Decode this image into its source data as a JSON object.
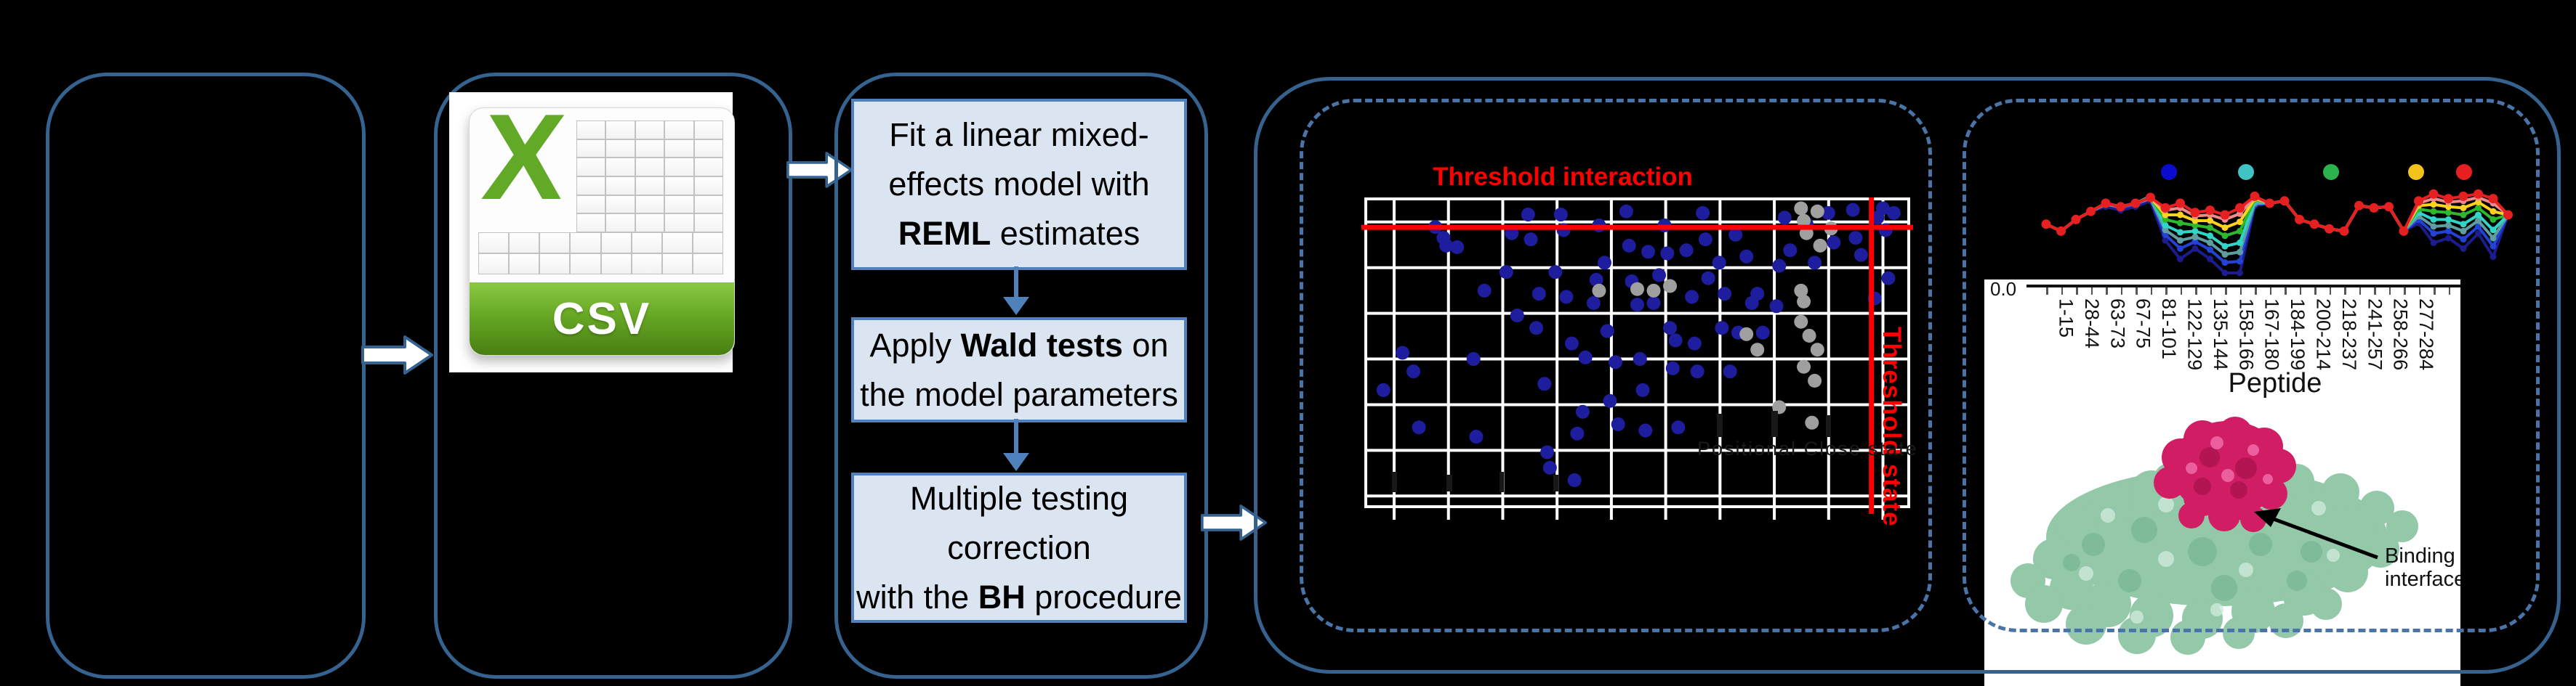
{
  "figure": {
    "flow": {
      "boxes": [
        {
          "lines": [
            [
              {
                "t": "Fit a linear mixed-"
              }
            ],
            [
              {
                "t": "effects model with"
              }
            ],
            [
              {
                "t": "REML",
                "b": 1
              },
              {
                "t": " estimates"
              }
            ]
          ]
        },
        {
          "lines": [
            [
              {
                "t": "Apply "
              },
              {
                "t": "Wald tests",
                "b": 1
              },
              {
                "t": " on"
              }
            ],
            [
              {
                "t": "the model parameters"
              }
            ]
          ]
        },
        {
          "lines": [
            [
              {
                "t": "Multiple testing"
              }
            ],
            [
              {
                "t": "correction"
              }
            ],
            [
              {
                "t": "with the "
              },
              {
                "t": "BH",
                "b": 1
              },
              {
                "t": " procedure"
              }
            ]
          ]
        }
      ]
    },
    "csv_label": "CSV",
    "structure_labels": {
      "binding_line1": "Binding",
      "binding_line2": "interface"
    },
    "colors": {
      "panel_border": "#35628f",
      "dashed_border": "#4a74a8",
      "flow_fill": "#dbe5f1",
      "flow_border": "#4f81bd",
      "threshold_red": "#ff0000",
      "navy_dot": "#1d1d9e",
      "gray_dot": "#9f9f9f",
      "protein_green": "#93c8a9",
      "peptide_magenta": "#d01d63"
    }
  },
  "chart_data": [
    {
      "type": "scatter",
      "title": "Threshold interaction",
      "hline_label": "Threshold interaction",
      "vline_label": "Threshold state",
      "faint_label": "Positional Close state",
      "threshold_hline_fy": 0.096,
      "threshold_vline_fx": 0.929,
      "grid_cols_fx": [
        0.0546,
        0.1541,
        0.2536,
        0.3531,
        0.4526,
        0.5521,
        0.6516,
        0.7511,
        0.8506,
        0.9501
      ],
      "grid_rows_fy": [
        0.079,
        0.226,
        0.373,
        0.52,
        0.667,
        0.814,
        0.961
      ],
      "series": [
        {
          "name": "significant-peptides",
          "color": "#1d1d9e",
          "points": [
            [
              0.035,
              0.62
            ],
            [
              0.07,
              0.5
            ],
            [
              0.09,
              0.56
            ],
            [
              0.1,
              0.74
            ],
            [
              0.13,
              0.095
            ],
            [
              0.145,
              0.13
            ],
            [
              0.15,
              0.155
            ],
            [
              0.17,
              0.16
            ],
            [
              0.2,
              0.52
            ],
            [
              0.205,
              0.77
            ],
            [
              0.22,
              0.3
            ],
            [
              0.26,
              0.24
            ],
            [
              0.27,
              0.115
            ],
            [
              0.28,
              0.38
            ],
            [
              0.3,
              0.055
            ],
            [
              0.305,
              0.135
            ],
            [
              0.315,
              0.42
            ],
            [
              0.32,
              0.31
            ],
            [
              0.33,
              0.6
            ],
            [
              0.335,
              0.82
            ],
            [
              0.34,
              0.87
            ],
            [
              0.35,
              0.24
            ],
            [
              0.36,
              0.055
            ],
            [
              0.365,
              0.105
            ],
            [
              0.37,
              0.32
            ],
            [
              0.38,
              0.47
            ],
            [
              0.385,
              0.91
            ],
            [
              0.39,
              0.76
            ],
            [
              0.4,
              0.69
            ],
            [
              0.405,
              0.515
            ],
            [
              0.42,
              0.34
            ],
            [
              0.425,
              0.265
            ],
            [
              0.43,
              0.09
            ],
            [
              0.44,
              0.21
            ],
            [
              0.445,
              0.43
            ],
            [
              0.45,
              0.655
            ],
            [
              0.46,
              0.53
            ],
            [
              0.465,
              0.73
            ],
            [
              0.48,
              0.045
            ],
            [
              0.485,
              0.155
            ],
            [
              0.49,
              0.27
            ],
            [
              0.5,
              0.345
            ],
            [
              0.505,
              0.52
            ],
            [
              0.51,
              0.62
            ],
            [
              0.515,
              0.75
            ],
            [
              0.52,
              0.175
            ],
            [
              0.53,
              0.34
            ],
            [
              0.54,
              0.25
            ],
            [
              0.55,
              0.09
            ],
            [
              0.555,
              0.18
            ],
            [
              0.56,
              0.42
            ],
            [
              0.565,
              0.55
            ],
            [
              0.57,
              0.46
            ],
            [
              0.575,
              0.74
            ],
            [
              0.59,
              0.17
            ],
            [
              0.6,
              0.32
            ],
            [
              0.605,
              0.47
            ],
            [
              0.61,
              0.56
            ],
            [
              0.62,
              0.05
            ],
            [
              0.625,
              0.135
            ],
            [
              0.63,
              0.26
            ],
            [
              0.65,
              0.21
            ],
            [
              0.655,
              0.42
            ],
            [
              0.66,
              0.31
            ],
            [
              0.67,
              0.56
            ],
            [
              0.68,
              0.12
            ],
            [
              0.685,
              0.435
            ],
            [
              0.7,
              0.19
            ],
            [
              0.71,
              0.34
            ],
            [
              0.72,
              0.31
            ],
            [
              0.73,
              0.435
            ],
            [
              0.755,
              0.35
            ],
            [
              0.76,
              0.22
            ],
            [
              0.77,
              0.065
            ],
            [
              0.78,
              0.17
            ],
            [
              0.81,
              0.085
            ],
            [
              0.825,
              0.21
            ],
            [
              0.85,
              0.05
            ],
            [
              0.86,
              0.145
            ],
            [
              0.895,
              0.04
            ],
            [
              0.9,
              0.13
            ],
            [
              0.91,
              0.185
            ],
            [
              0.935,
              0.325
            ],
            [
              0.94,
              0.065
            ],
            [
              0.95,
              0.035
            ],
            [
              0.955,
              0.105
            ],
            [
              0.96,
              0.26
            ],
            [
              0.97,
              0.05
            ]
          ]
        },
        {
          "name": "non-significant-peptides",
          "color": "#9f9f9f",
          "points": [
            [
              0.7,
              0.44
            ],
            [
              0.72,
              0.49
            ],
            [
              0.5,
              0.295
            ],
            [
              0.53,
              0.3
            ],
            [
              0.8,
              0.035
            ],
            [
              0.805,
              0.075
            ],
            [
              0.81,
              0.115
            ],
            [
              0.83,
              0.045
            ],
            [
              0.835,
              0.155
            ],
            [
              0.855,
              0.1
            ],
            [
              0.8,
              0.3
            ],
            [
              0.805,
              0.335
            ],
            [
              0.8,
              0.4
            ],
            [
              0.815,
              0.445
            ],
            [
              0.83,
              0.49
            ],
            [
              0.805,
              0.545
            ],
            [
              0.825,
              0.59
            ],
            [
              0.76,
              0.675
            ],
            [
              0.82,
              0.725
            ],
            [
              0.43,
              0.3
            ],
            [
              0.56,
              0.285
            ]
          ]
        }
      ]
    },
    {
      "type": "line",
      "xlabel": "Peptide",
      "y_tick_label": "0.0",
      "categories": [
        "1-15",
        "28-44",
        "63-73",
        "67-75",
        "81-101",
        "122-129",
        "135-144",
        "158-166",
        "167-180",
        "184-199",
        "200-214",
        "218-237",
        "241-257",
        "258-266",
        "277-284"
      ],
      "legend_dot_colors": [
        "#0b0bd0",
        "#3fc3c3",
        "#2db34d",
        "#f2c31d",
        "#e62020"
      ],
      "ylim": [
        0.0,
        1.0
      ],
      "series": [
        {
          "name": "navy",
          "color": "#1c1c8f",
          "values": [
            0.52,
            0.46,
            0.56,
            0.63,
            0.67,
            0.64,
            0.67,
            0.72,
            0.38,
            0.22,
            0.31,
            0.22,
            0.1,
            0.1,
            0.68,
            0.7,
            0.72,
            0.56,
            0.52,
            0.48,
            0.46,
            0.68,
            0.66,
            0.67,
            0.46,
            0.53,
            0.36,
            0.4,
            0.31,
            0.44,
            0.24,
            0.6
          ]
        },
        {
          "name": "blue",
          "color": "#2343d7",
          "values": [
            0.52,
            0.46,
            0.56,
            0.63,
            0.69,
            0.66,
            0.69,
            0.74,
            0.43,
            0.31,
            0.37,
            0.3,
            0.19,
            0.2,
            0.69,
            0.7,
            0.72,
            0.56,
            0.52,
            0.48,
            0.46,
            0.68,
            0.66,
            0.67,
            0.46,
            0.56,
            0.44,
            0.46,
            0.39,
            0.5,
            0.33,
            0.6
          ]
        },
        {
          "name": "teal",
          "color": "#5f9ea0",
          "values": [
            0.52,
            0.46,
            0.56,
            0.63,
            0.69,
            0.67,
            0.7,
            0.74,
            0.47,
            0.38,
            0.41,
            0.36,
            0.26,
            0.28,
            0.7,
            0.7,
            0.72,
            0.56,
            0.52,
            0.48,
            0.46,
            0.68,
            0.66,
            0.67,
            0.46,
            0.59,
            0.5,
            0.51,
            0.46,
            0.55,
            0.4,
            0.6
          ]
        },
        {
          "name": "cyan",
          "color": "#30d5c8",
          "values": [
            0.52,
            0.46,
            0.56,
            0.63,
            0.7,
            0.67,
            0.7,
            0.76,
            0.51,
            0.45,
            0.46,
            0.42,
            0.33,
            0.36,
            0.72,
            0.7,
            0.72,
            0.56,
            0.52,
            0.48,
            0.46,
            0.68,
            0.66,
            0.67,
            0.46,
            0.62,
            0.56,
            0.56,
            0.52,
            0.6,
            0.47,
            0.6
          ]
        },
        {
          "name": "green",
          "color": "#2eb82e",
          "values": [
            0.52,
            0.46,
            0.56,
            0.63,
            0.7,
            0.67,
            0.7,
            0.75,
            0.56,
            0.53,
            0.51,
            0.49,
            0.42,
            0.46,
            0.73,
            0.7,
            0.72,
            0.56,
            0.52,
            0.48,
            0.46,
            0.68,
            0.66,
            0.67,
            0.46,
            0.65,
            0.63,
            0.62,
            0.6,
            0.66,
            0.56,
            0.6
          ]
        },
        {
          "name": "yellow",
          "color": "#ffd21f",
          "values": [
            0.52,
            0.46,
            0.56,
            0.63,
            0.7,
            0.67,
            0.7,
            0.75,
            0.6,
            0.6,
            0.55,
            0.55,
            0.49,
            0.54,
            0.74,
            0.7,
            0.72,
            0.56,
            0.52,
            0.48,
            0.46,
            0.68,
            0.66,
            0.67,
            0.46,
            0.68,
            0.69,
            0.67,
            0.66,
            0.71,
            0.63,
            0.6
          ]
        },
        {
          "name": "salmon",
          "color": "#ef8b8b",
          "values": [
            0.52,
            0.46,
            0.56,
            0.63,
            0.7,
            0.67,
            0.7,
            0.75,
            0.64,
            0.66,
            0.59,
            0.6,
            0.56,
            0.61,
            0.75,
            0.7,
            0.72,
            0.56,
            0.52,
            0.48,
            0.46,
            0.68,
            0.66,
            0.67,
            0.46,
            0.7,
            0.74,
            0.71,
            0.72,
            0.75,
            0.7,
            0.6
          ]
        },
        {
          "name": "red",
          "color": "#e62020",
          "values": [
            0.52,
            0.46,
            0.56,
            0.63,
            0.7,
            0.67,
            0.7,
            0.75,
            0.66,
            0.7,
            0.62,
            0.64,
            0.6,
            0.66,
            0.76,
            0.7,
            0.72,
            0.56,
            0.52,
            0.48,
            0.46,
            0.68,
            0.66,
            0.67,
            0.46,
            0.72,
            0.78,
            0.74,
            0.76,
            0.78,
            0.74,
            0.6
          ]
        }
      ]
    }
  ]
}
